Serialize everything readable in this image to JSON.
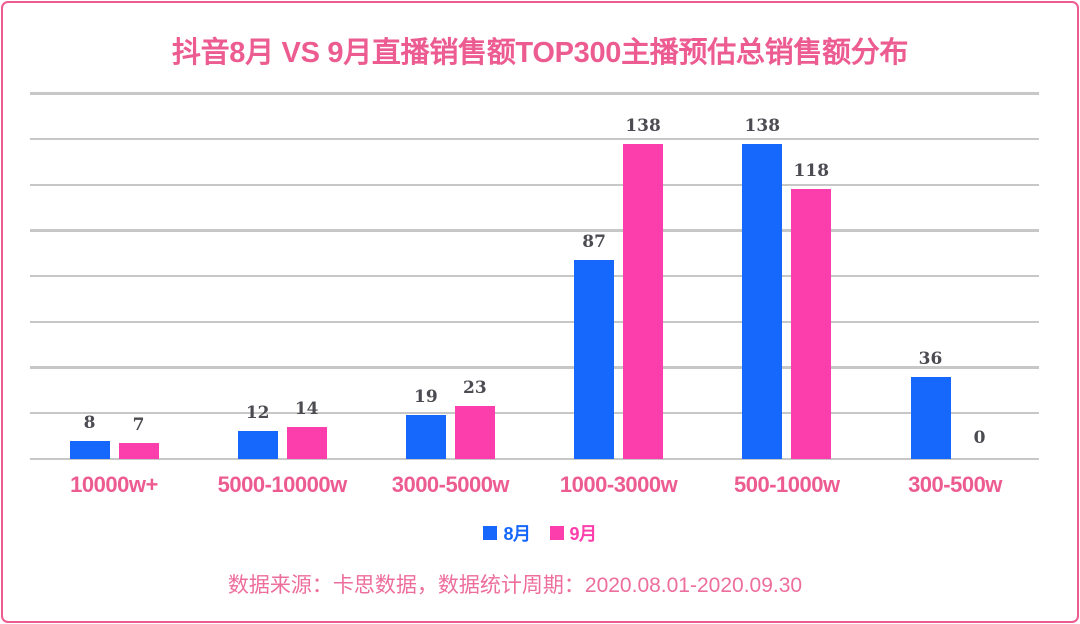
{
  "title": "抖音8月 VS 9月直播销售额TOP300主播预估总销售额分布",
  "footer_note": "数据来源：卡思数据，数据统计周期：2020.08.01-2020.09.30",
  "legend": [
    {
      "label": "8月",
      "color": "#1667FB"
    },
    {
      "label": "9月",
      "color": "#FC3EAC"
    }
  ],
  "colors": {
    "accent_pink": "#ED5C91",
    "footer_pink": "#ED6E9C",
    "bar_blue": "#1667FB",
    "bar_magenta": "#FC3EAC",
    "value_label": "#4B4B52",
    "gridline": "#C7C7C7",
    "background": "#FFFFFF",
    "border": "#ED5C91"
  },
  "chart_data": {
    "type": "bar",
    "title": "抖音8月 VS 9月直播销售额TOP300主播预估总销售额分布",
    "categories": [
      "10000w+",
      "5000-10000w",
      "3000-5000w",
      "1000-3000w",
      "500-1000w",
      "300-500w"
    ],
    "series": [
      {
        "name": "8月",
        "color": "#1667FB",
        "values": [
          8,
          12,
          19,
          87,
          138,
          36
        ]
      },
      {
        "name": "9月",
        "color": "#FC3EAC",
        "values": [
          7,
          14,
          23,
          138,
          118,
          0
        ]
      }
    ],
    "xlabel": "",
    "ylabel": "",
    "ylim": [
      0,
      160
    ],
    "gridline_step": 20,
    "grid": "horizontal-only",
    "y_axis_labels_shown": false,
    "value_labels_shown": true,
    "legend_position": "bottom-center",
    "source_note": "数据来源：卡思数据，数据统计周期：2020.08.01-2020.09.30"
  }
}
